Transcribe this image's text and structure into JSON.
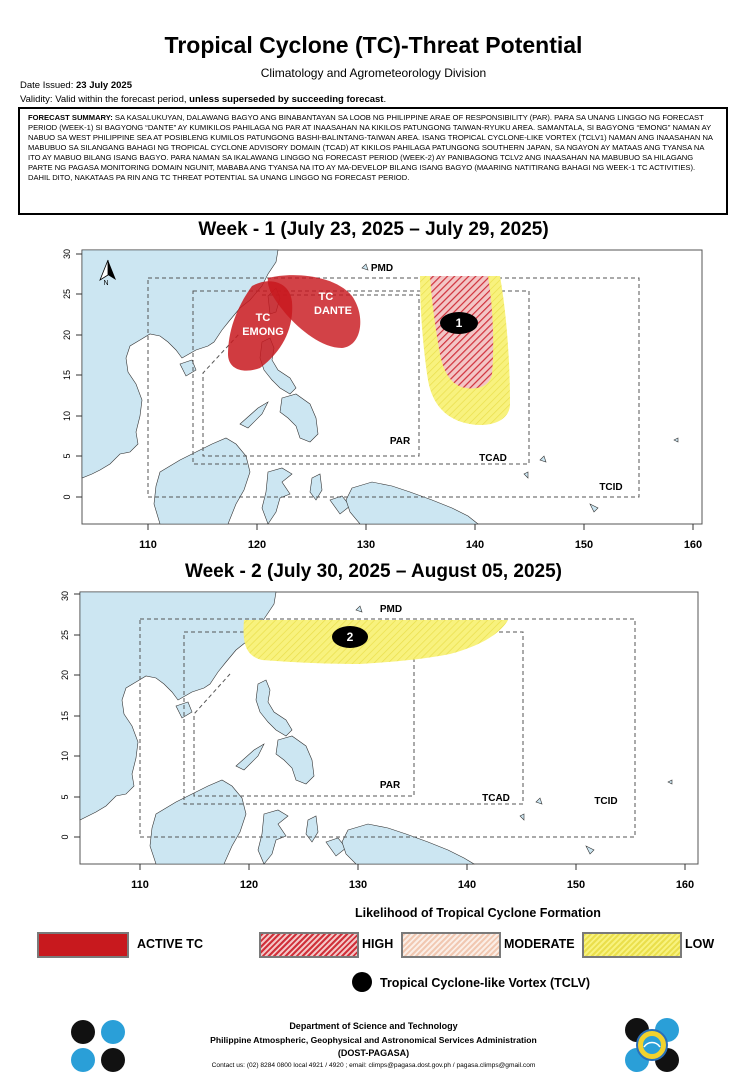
{
  "header": {
    "title": "Tropical Cyclone (TC)-Threat Potential",
    "subtitle": "Climatology and Agrometeorology Division",
    "date_label": "Date Issued:",
    "date_value": "23 July 2025",
    "validity_label": "Validity: Valid within the forecast period,",
    "validity_emphasis": "unless superseded by succeeding forecast",
    "validity_end": "."
  },
  "summary": {
    "label": "FORECAST SUMMARY:",
    "text": "SA KASALUKUYAN, DALAWANG BAGYO ANG BINABANTAYAN SA LOOB NG PHILIPPINE ARAE OF RESPONSIBILITY (PAR). PARA SA UNANG LINGGO NG FORECAST PERIOD (WEEK-1) SI BAGYONG “DANTE” AY KUMIKILOS PAHILAGA NG PAR AT INAASAHAN NA KIKILOS PATUNGONG TAIWAN-RYUKU AREA. SAMANTALA, SI BAGYONG “EMONG” NAMAN AY NABUO SA WEST PHILIPPINE SEA AT POSIBLENG KUMILOS PATUNGONG BASHI-BALINTANG-TAIWAN AREA. ISANG TROPICAL CYCLONE-LIKE VORTEX (TCLV1) NAMAN ANG INAASAHAN NA MABUBUO SA SILANGANG BAHAGI NG TROPICAL CYCLONE ADVISORY DOMAIN (TCAD) AT KIKILOS PAHILAGA PATUNGONG SOUTHERN JAPAN, SA NGAYON AY MATAAS ANG TYANSA NA ITO AY MABUO BILANG ISANG BAGYO. PARA NAMAN SA IKALAWANG LINGGO NG FORECAST PERIOD (WEEK-2) AY PANIBAGONG TCLV2 ANG INAASAHAN NA MABUBUO SA HILAGANG PARTE NG PAGASA MONITORING DOMAIN NGUNIT, MABABA ANG TYANSA NA ITO AY MA-DEVELOP BILANG ISANG BAGYO (MAARING NATITIRANG BAHAGI NG WEEK-1 TC ACTIVITIES). DAHIL DITO, NAKATAAS PA RIN ANG TC THREAT POTENTIAL SA UNANG LINGGO NG FORECAST PERIOD."
  },
  "weeks": [
    {
      "title": "Week - 1 (July 23, 2025 – July 29, 2025)",
      "labels": {
        "pmd": "PMD",
        "par": "PAR",
        "tcad": "TCAD",
        "tcid": "TCID",
        "north": "N",
        "tc1": "TC",
        "tc1_name": "EMONG",
        "tc2": "TC",
        "tc2_name": "DANTE",
        "tclv": "1"
      }
    },
    {
      "title": "Week - 2 (July 30, 2025 – August 05, 2025)",
      "labels": {
        "pmd": "PMD",
        "par": "PAR",
        "tcad": "TCAD",
        "tcid": "TCID",
        "tclv": "2"
      }
    }
  ],
  "axes": {
    "x_ticks": [
      "110",
      "120",
      "130",
      "140",
      "150",
      "160"
    ],
    "y_ticks": [
      "0",
      "5",
      "10",
      "15",
      "20",
      "25",
      "30"
    ]
  },
  "legend": {
    "title": "Likelihood of Tropical Cyclone Formation",
    "active": "ACTIVE TC",
    "high": "HIGH",
    "moderate": "MODERATE",
    "low": "LOW",
    "tclv": "Tropical Cyclone-like Vortex (TCLV)"
  },
  "colors": {
    "land": "#cce6f2",
    "active": "#c8191e",
    "high_stripe": "#d0303a",
    "moderate": "#f7ddcf",
    "low": "#f5f07a"
  },
  "footer": {
    "line1": "Department of Science and Technology",
    "line2": "Philippine Atmospheric, Geophysical and Astronomical Services Administration",
    "line3": "(DOST-PAGASA)",
    "contact": "Contact us: (02) 8284 0800 local 4921 / 4920 ; email: climps@pagasa.dost.gov.ph / pagasa.climps@gmail.com"
  },
  "logos": {
    "left": "dost-logo",
    "right": "pagasa-logo"
  }
}
